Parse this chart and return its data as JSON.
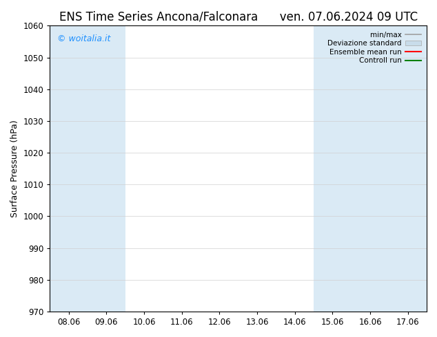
{
  "title_left": "ENS Time Series Ancona/Falconara",
  "title_right": "ven. 07.06.2024 09 UTC",
  "ylabel": "Surface Pressure (hPa)",
  "ylim": [
    970,
    1060
  ],
  "yticks": [
    970,
    980,
    990,
    1000,
    1010,
    1020,
    1030,
    1040,
    1050,
    1060
  ],
  "xtick_labels": [
    "08.06",
    "09.06",
    "10.06",
    "11.06",
    "12.06",
    "13.06",
    "14.06",
    "15.06",
    "16.06",
    "17.06"
  ],
  "xtick_positions": [
    0,
    1,
    2,
    3,
    4,
    5,
    6,
    7,
    8,
    9
  ],
  "shaded_cols": [
    0,
    1,
    7,
    8,
    9
  ],
  "shaded_color": "#daeaf5",
  "background_color": "#ffffff",
  "watermark_text": "© woitalia.it",
  "watermark_color": "#1e90ff",
  "legend_labels": [
    "min/max",
    "Deviazione standard",
    "Ensemble mean run",
    "Controll run"
  ],
  "legend_minmax_color": "#a0a0a0",
  "legend_dev_color": "#c8dcea",
  "legend_ens_color": "#ff0000",
  "legend_ctrl_color": "#008000",
  "title_fontsize": 12,
  "axis_label_fontsize": 9,
  "tick_fontsize": 8.5,
  "legend_fontsize": 7.5
}
